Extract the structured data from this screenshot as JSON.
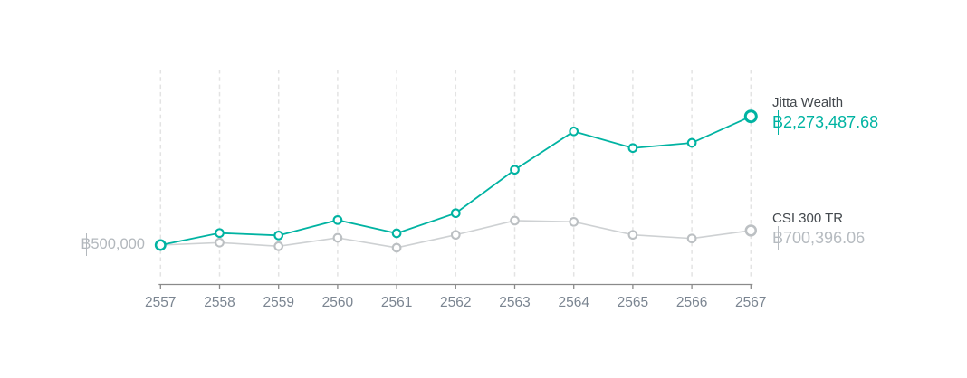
{
  "colors": {
    "accent_teal": "#00b3a2",
    "series_gray_line": "#ced1d3",
    "series_gray_marker": "#bcc0c3",
    "gridline": "#e3e3e3",
    "axis_line": "#8a8a8a",
    "x_tick_label": "#7b8591",
    "y_axis_label": "#b3b8bd",
    "legend_name": "#43484d",
    "legend_value_muted": "#b6bbc0",
    "background": "#ffffff"
  },
  "chart_data": {
    "type": "line",
    "x": [
      "2557",
      "2558",
      "2559",
      "2560",
      "2561",
      "2562",
      "2563",
      "2564",
      "2565",
      "2566",
      "2567"
    ],
    "baseline_label": "฿500,000",
    "baseline_value": 500000,
    "grid": "vertical-dashed",
    "legend_position": "right",
    "ylim": [
      0,
      2900000
    ],
    "series": [
      {
        "name": "Jitta Wealth",
        "color": "#00b3a2",
        "marker_color": "#00b3a2",
        "end_label": "฿2,273,487.68",
        "end_value": 2273487.68,
        "values": [
          500000,
          666000,
          633000,
          845000,
          662000,
          940000,
          1538000,
          2067000,
          1837000,
          1908000,
          2273487.68
        ]
      },
      {
        "name": "CSI 300 TR",
        "color": "#ced1d3",
        "marker_color": "#bcc0c3",
        "end_label": "฿700,396.06",
        "end_value": 700396.06,
        "values": [
          500000,
          534000,
          484000,
          600000,
          463000,
          641000,
          837000,
          820000,
          641000,
          591000,
          700396.06
        ]
      }
    ]
  }
}
